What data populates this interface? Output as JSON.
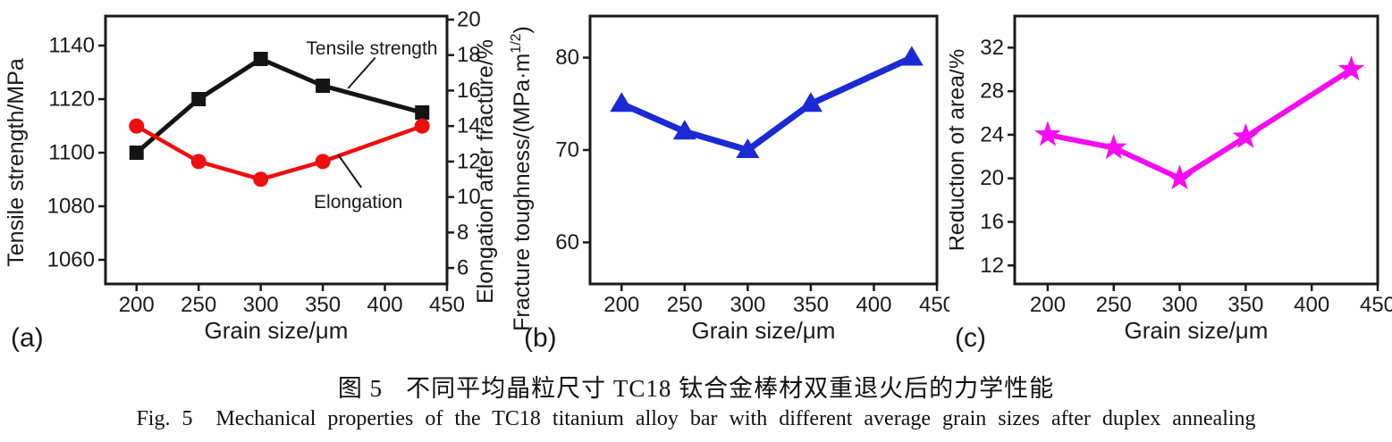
{
  "caption": {
    "zh_prefix": "图 5",
    "zh_text": "不同平均晶粒尺寸 TC18 钛合金棒材双重退火后的力学性能",
    "en_prefix": "Fig. 5",
    "en_text": "Mechanical properties of the TC18 titanium alloy bar with different average grain sizes after duplex annealing"
  },
  "chart_data": [
    {
      "type": "line",
      "panel_label": "(a)",
      "x": [
        200,
        250,
        300,
        350,
        430
      ],
      "xticks": [
        200,
        250,
        300,
        350,
        400,
        450
      ],
      "xlim": [
        175,
        450
      ],
      "xlabel": "Grain size/μm",
      "grid": false,
      "axes": {
        "left": {
          "label": "Tensile strength/MPa",
          "ticks": [
            1060,
            1080,
            1100,
            1120,
            1140
          ],
          "lim": [
            1051,
            1151
          ]
        },
        "right": {
          "label": "Elongation after fracture/%",
          "ticks": [
            6,
            8,
            10,
            12,
            14,
            16,
            18,
            20
          ],
          "lim": [
            5.1,
            20.2
          ]
        }
      },
      "series": [
        {
          "name": "Tensile strength",
          "axis": "left",
          "marker": "square",
          "color": "#141414",
          "values": [
            1100,
            1120,
            1135,
            1125,
            1115
          ]
        },
        {
          "name": "Elongation",
          "axis": "right",
          "marker": "circle",
          "color": "#ee0e0e",
          "values": [
            14,
            12,
            11,
            12,
            14
          ]
        }
      ],
      "annotations": [
        {
          "text": "Tensile strength",
          "tx": 0.78,
          "ty": 0.143,
          "leader": [
            0.79,
            0.155,
            0.71,
            0.27
          ]
        },
        {
          "text": "Elongation",
          "tx": 0.74,
          "ty": 0.717,
          "leader": [
            0.749,
            0.64,
            0.681,
            0.517
          ]
        }
      ]
    },
    {
      "type": "line",
      "panel_label": "(b)",
      "x": [
        200,
        250,
        300,
        350,
        430
      ],
      "xticks": [
        200,
        250,
        300,
        350,
        400,
        450
      ],
      "xlim": [
        175,
        450
      ],
      "xlabel": "Grain size/μm",
      "grid": false,
      "axes": {
        "left": {
          "label": "Fracture toughness/(MPa·m",
          "label_sup": "1/2",
          "label_post": ")",
          "ticks": [
            60,
            70,
            80
          ],
          "lim": [
            55.5,
            84.5
          ]
        }
      },
      "series": [
        {
          "name": "Fracture toughness",
          "axis": "left",
          "marker": "triangle",
          "color": "#1b2ad4",
          "values": [
            75,
            72,
            70,
            75,
            80
          ]
        }
      ],
      "annotations": []
    },
    {
      "type": "line",
      "panel_label": "(c)",
      "x": [
        200,
        250,
        300,
        350,
        430
      ],
      "xticks": [
        200,
        250,
        300,
        350,
        400,
        450
      ],
      "xlim": [
        175,
        450
      ],
      "xlabel": "Grain size/μm",
      "grid": false,
      "axes": {
        "left": {
          "label": "Reduction of area/%",
          "ticks": [
            12,
            16,
            20,
            24,
            28,
            32
          ],
          "lim": [
            10.3,
            34.9
          ]
        }
      },
      "series": [
        {
          "name": "Reduction of area",
          "axis": "left",
          "marker": "star",
          "color": "#f70bf0",
          "values": [
            24,
            22.8,
            20,
            23.8,
            30
          ]
        }
      ],
      "annotations": []
    }
  ]
}
